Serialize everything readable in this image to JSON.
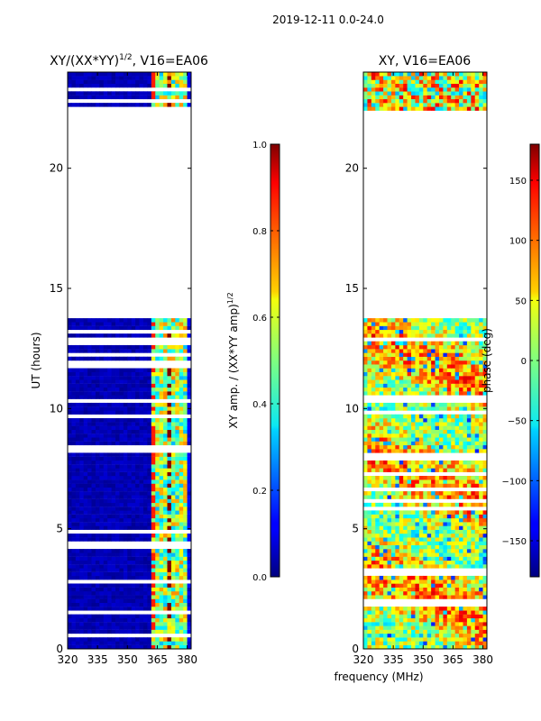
{
  "suptitle": "2019-12-11 0.0-24.0",
  "chart_data": [
    {
      "type": "heatmap",
      "title_main": "XY/(XX*YY)",
      "title_sup": "1/2",
      "title_tail": ", V16=EA06",
      "xlabel": "",
      "ylabel": "UT (hours)",
      "xlim": [
        320,
        382
      ],
      "ylim": [
        0,
        24
      ],
      "xticks": [
        "320",
        "335",
        "350",
        "365",
        "380"
      ],
      "xtick_values": [
        320,
        335,
        350,
        365,
        380
      ],
      "yticks": [
        "0",
        "5",
        "10",
        "15",
        "20"
      ],
      "ytick_values": [
        0,
        5,
        10,
        15,
        20
      ],
      "data_gap_hours": [
        13.8,
        22.4
      ],
      "colorbar": {
        "label_main": "XY amp. / (XX*YY amp)",
        "label_sup": "1/2",
        "vmin": 0.0,
        "vmax": 1.0,
        "ticks": [
          "0.0",
          "0.2",
          "0.4",
          "0.6",
          "0.8",
          "1.0"
        ],
        "tick_values": [
          0.0,
          0.2,
          0.4,
          0.6,
          0.8,
          1.0
        ]
      }
    },
    {
      "type": "heatmap",
      "title": "XY, V16=EA06",
      "xlabel": "frequency (MHz)",
      "ylabel": "",
      "xlim": [
        320,
        382
      ],
      "ylim": [
        0,
        24
      ],
      "xticks": [
        "320",
        "335",
        "350",
        "365",
        "380"
      ],
      "xtick_values": [
        320,
        335,
        350,
        365,
        380
      ],
      "yticks": [
        "0",
        "5",
        "10",
        "15",
        "20"
      ],
      "ytick_values": [
        0,
        5,
        10,
        15,
        20
      ],
      "data_gap_hours": [
        13.8,
        22.4
      ],
      "colorbar": {
        "label": "phase (deg)",
        "vmin": -180,
        "vmax": 180,
        "ticks": [
          "−150",
          "−100",
          "−50",
          "0",
          "50",
          "100",
          "150"
        ],
        "tick_values": [
          -150,
          -100,
          -50,
          0,
          50,
          100,
          150
        ]
      }
    }
  ]
}
